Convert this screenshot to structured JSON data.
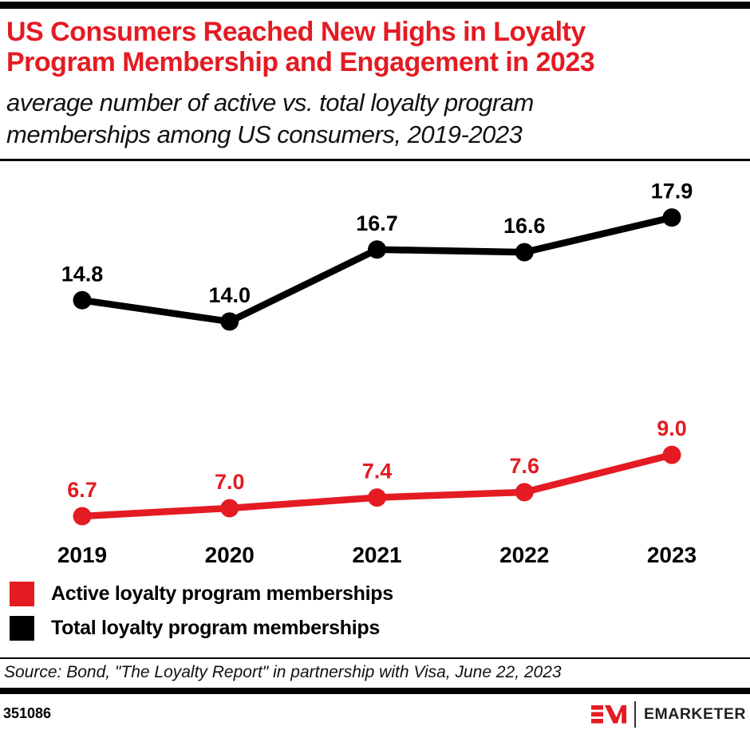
{
  "header": {
    "title_line1": "US Consumers Reached New Highs in Loyalty",
    "title_line2": "Program Membership and Engagement in 2023",
    "title_color": "#e41b23",
    "subtitle_line1": "average number of active vs. total loyalty program",
    "subtitle_line2": "memberships among US consumers, 2019-2023"
  },
  "chart_data": {
    "type": "line",
    "categories": [
      "2019",
      "2020",
      "2021",
      "2022",
      "2023"
    ],
    "series": [
      {
        "name": "Total loyalty program memberships",
        "color": "#000000",
        "values": [
          14.8,
          14.0,
          16.7,
          16.6,
          17.9
        ]
      },
      {
        "name": "Active loyalty program memberships",
        "color": "#e41b23",
        "values": [
          6.7,
          7.0,
          7.4,
          7.6,
          9.0
        ]
      }
    ],
    "value_labels": true,
    "grid": false,
    "axes": "none (direct-labeled line chart)",
    "ylim": [
      6,
      19
    ],
    "legend_position": "bottom-left"
  },
  "legend": {
    "items": [
      {
        "label": "Active loyalty program memberships",
        "color": "#e41b23"
      },
      {
        "label": "Total loyalty program memberships",
        "color": "#000000"
      }
    ]
  },
  "source": {
    "text": "Source: Bond, \"The Loyalty Report\" in partnership with Visa, June 22, 2023"
  },
  "footer": {
    "chart_id": "351086",
    "brand": "EMARKETER",
    "logo_monogram": "EM",
    "logo_color": "#e41b23"
  }
}
